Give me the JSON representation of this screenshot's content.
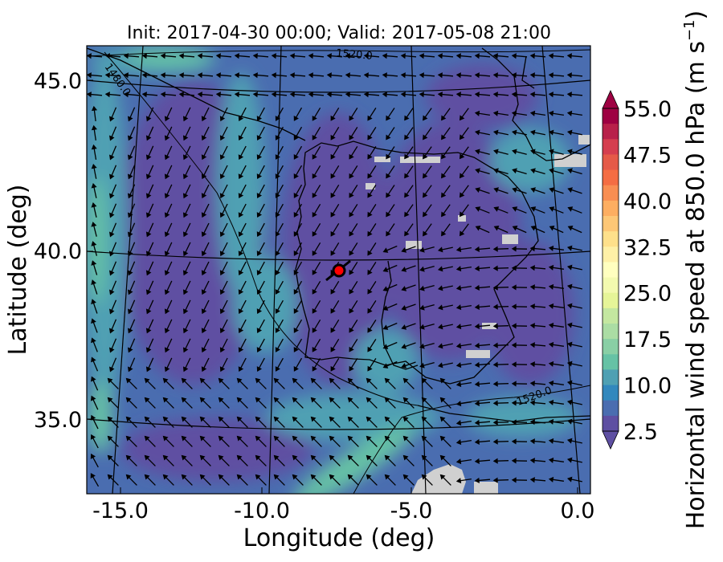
{
  "title": "Init: 2017-04-30 00:00; Valid: 2017-05-08 21:00",
  "xlabel": "Longitude (deg)",
  "ylabel": "Latitude (deg)",
  "x_ticks": [
    "-15.0",
    "-10.0",
    "-5.0",
    "0.0"
  ],
  "y_ticks": [
    "45.0",
    "40.0",
    "35.0"
  ],
  "colorbar": {
    "label": "Horizontal wind speed at 850.0 hPa (m s",
    "label_superscript": "−1",
    "label_close": ")",
    "tick_labels": [
      "55.0",
      "47.5",
      "40.0",
      "32.5",
      "25.0",
      "17.5",
      "10.0",
      "2.5"
    ],
    "colors": [
      "#9e0142",
      "#b8214a",
      "#d53e4f",
      "#e55a48",
      "#f46d43",
      "#f88e52",
      "#fdae61",
      "#fdc776",
      "#fee08b",
      "#fef0a7",
      "#ffffbf",
      "#f3faaf",
      "#e6f598",
      "#c4e7a0",
      "#abdda4",
      "#89cfa5",
      "#66c2a5",
      "#4fa0b3",
      "#3288bd",
      "#4a6db0",
      "#5e4fa2"
    ]
  },
  "contour_labels": [
    "1520.0",
    "1480.0",
    "1520.0"
  ],
  "map_colors": {
    "background": "#4a6db0",
    "calm": "#5e4fa2",
    "moderate": "#4fa0b3",
    "strong": "#66c2a5",
    "masked": "#d0d0d0",
    "marker": "#ff0000"
  },
  "icons": {
    "marker": "red-circle-marker-icon"
  },
  "chart_data": {
    "type": "heatmap",
    "variable": "Horizontal wind speed at 850.0 hPa",
    "units": "m s-1",
    "x_range": [
      -16.0,
      0.2
    ],
    "y_range": [
      32.6,
      46.0
    ],
    "colorbar_range": [
      2.5,
      55.0
    ],
    "colorbar_step": 2.5,
    "marker": {
      "lon": -7.7,
      "lat": 39.4
    },
    "geopotential_contours": [
      1480.0,
      1520.0,
      1520.0
    ]
  }
}
